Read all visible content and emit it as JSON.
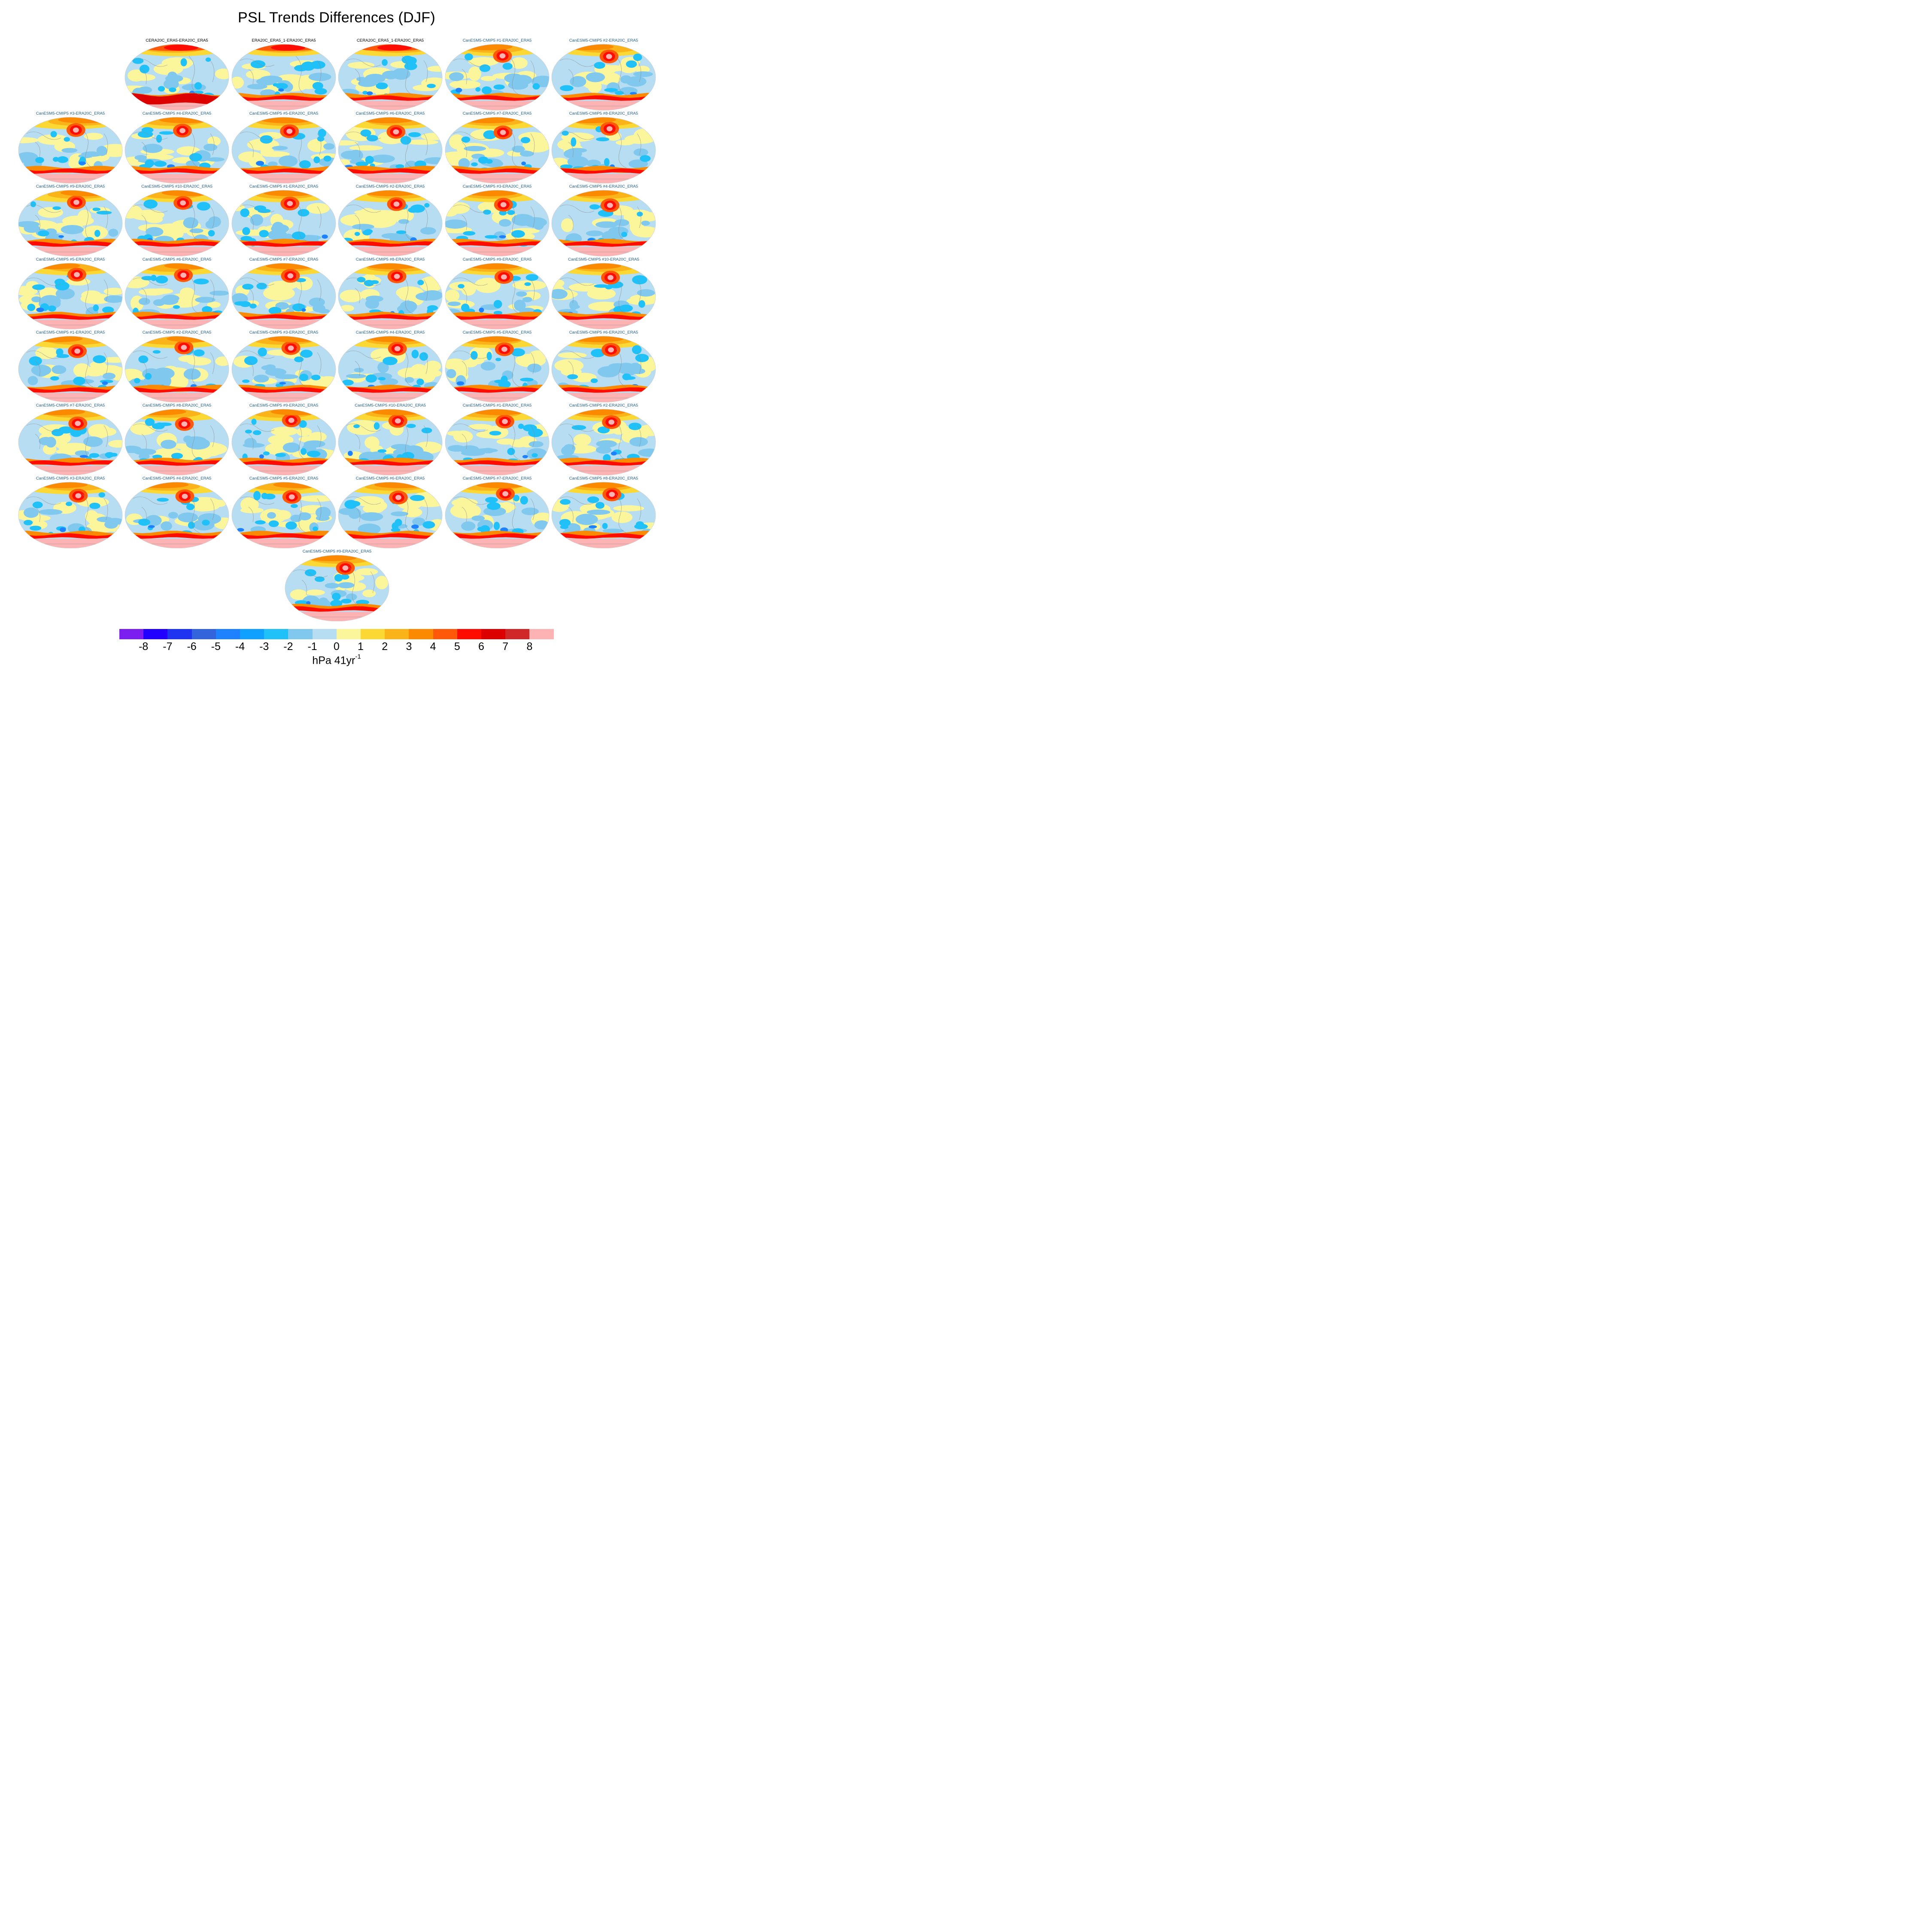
{
  "title": "PSL Trends Differences (DJF)",
  "colors": {
    "ocean_neutral_neg": "#b6ddf2",
    "ocean_neutral_pos": "#fbf59b",
    "coastline": "#8a8a8a"
  },
  "panels": [
    {
      "label": "CERA20C_ERA5-ERA20C_ERA5",
      "kind": "obs"
    },
    {
      "label": "ERA20C_ERA5_1-ERA20C_ERA5",
      "kind": "obs"
    },
    {
      "label": "CERA20C_ERA5_1-ERA20C_ERA5",
      "kind": "obs"
    },
    {
      "label": "CanESM5-CMIP5 #1-ERA20C_ERA5",
      "kind": "model"
    },
    {
      "label": "CanESM5-CMIP5 #2-ERA20C_ERA5",
      "kind": "model"
    },
    {
      "label": "CanESM5-CMIP5 #3-ERA20C_ERA5",
      "kind": "model"
    },
    {
      "label": "CanESM5-CMIP5 #4-ERA20C_ERA5",
      "kind": "model"
    },
    {
      "label": "CanESM5-CMIP5 #5-ERA20C_ERA5",
      "kind": "model"
    },
    {
      "label": "CanESM5-CMIP5 #6-ERA20C_ERA5",
      "kind": "model"
    },
    {
      "label": "CanESM5-CMIP5 #7-ERA20C_ERA5",
      "kind": "model"
    },
    {
      "label": "CanESM5-CMIP5 #8-ERA20C_ERA5",
      "kind": "model"
    },
    {
      "label": "CanESM5-CMIP5 #9-ERA20C_ERA5",
      "kind": "model"
    },
    {
      "label": "CanESM5-CMIP5 #10-ERA20C_ERA5",
      "kind": "model"
    },
    {
      "label": "CanESM5-CMIP5 #1-ERA20C_ERA5",
      "kind": "model"
    },
    {
      "label": "CanESM5-CMIP5 #2-ERA20C_ERA5",
      "kind": "model"
    },
    {
      "label": "CanESM5-CMIP5 #3-ERA20C_ERA5",
      "kind": "model"
    },
    {
      "label": "CanESM5-CMIP5 #4-ERA20C_ERA5",
      "kind": "model"
    },
    {
      "label": "CanESM5-CMIP5 #5-ERA20C_ERA5",
      "kind": "model"
    },
    {
      "label": "CanESM5-CMIP5 #6-ERA20C_ERA5",
      "kind": "model"
    },
    {
      "label": "CanESM5-CMIP5 #7-ERA20C_ERA5",
      "kind": "model"
    },
    {
      "label": "CanESM5-CMIP5 #8-ERA20C_ERA5",
      "kind": "model"
    },
    {
      "label": "CanESM5-CMIP5 #9-ERA20C_ERA5",
      "kind": "model"
    },
    {
      "label": "CanESM5-CMIP5 #10-ERA20C_ERA5",
      "kind": "model"
    },
    {
      "label": "CanESM5-CMIP5 #1-ERA20C_ERA5",
      "kind": "model"
    },
    {
      "label": "CanESM5-CMIP5 #2-ERA20C_ERA5",
      "kind": "model"
    },
    {
      "label": "CanESM5-CMIP5 #3-ERA20C_ERA5",
      "kind": "model"
    },
    {
      "label": "CanESM5-CMIP5 #4-ERA20C_ERA5",
      "kind": "model"
    },
    {
      "label": "CanESM5-CMIP5 #5-ERA20C_ERA5",
      "kind": "model"
    },
    {
      "label": "CanESM5-CMIP5 #6-ERA20C_ERA5",
      "kind": "model"
    },
    {
      "label": "CanESM5-CMIP5 #7-ERA20C_ERA5",
      "kind": "model"
    },
    {
      "label": "CanESM5-CMIP5 #8-ERA20C_ERA5",
      "kind": "model"
    },
    {
      "label": "CanESM5-CMIP5 #9-ERA20C_ERA5",
      "kind": "model"
    },
    {
      "label": "CanESM5-CMIP5 #10-ERA20C_ERA5",
      "kind": "model"
    },
    {
      "label": "CanESM5-CMIP5 #1-ERA20C_ERA5",
      "kind": "model"
    },
    {
      "label": "CanESM5-CMIP5 #2-ERA20C_ERA5",
      "kind": "model"
    },
    {
      "label": "CanESM5-CMIP5 #3-ERA20C_ERA5",
      "kind": "model"
    },
    {
      "label": "CanESM5-CMIP5 #4-ERA20C_ERA5",
      "kind": "model"
    },
    {
      "label": "CanESM5-CMIP5 #5-ERA20C_ERA5",
      "kind": "model"
    },
    {
      "label": "CanESM5-CMIP5 #6-ERA20C_ERA5",
      "kind": "model"
    },
    {
      "label": "CanESM5-CMIP5 #7-ERA20C_ERA5",
      "kind": "model"
    },
    {
      "label": "CanESM5-CMIP5 #8-ERA20C_ERA5",
      "kind": "model"
    },
    {
      "label": "CanESM5-CMIP5 #9-ERA20C_ERA5",
      "kind": "model"
    }
  ],
  "chart_data": {
    "type": "heatmap",
    "title": "PSL Trends Differences (DJF)",
    "projection": "robinson",
    "season": "DJF",
    "panel_count": 42,
    "colorbar": {
      "units": "hPa 41yr",
      "units_superscript": "-1",
      "tick_labels": [
        "-8",
        "-7",
        "-6",
        "-5",
        "-4",
        "-3",
        "-2",
        "-1",
        "0",
        "1",
        "2",
        "3",
        "4",
        "5",
        "6",
        "7",
        "8"
      ],
      "colors": [
        "#7d1ef0",
        "#2200ff",
        "#1e34f0",
        "#3464dc",
        "#1e82ff",
        "#10a0ff",
        "#20c0f8",
        "#80c8ee",
        "#b6ddf2",
        "#fbf59b",
        "#fcd835",
        "#fbb31a",
        "#fb8a00",
        "#ff5808",
        "#ff0c00",
        "#dc0000",
        "#d02828",
        "#fdb3b3"
      ]
    }
  }
}
